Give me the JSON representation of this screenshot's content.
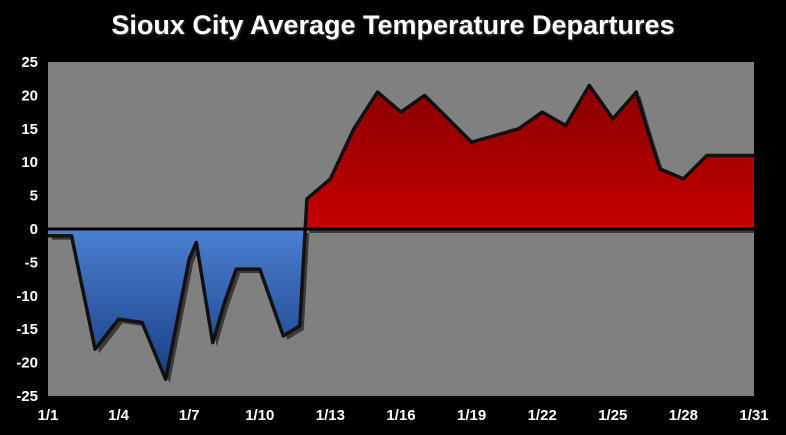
{
  "chart_data": {
    "type": "area",
    "title": "Sioux City Average Temperature Departures",
    "xlabel": "",
    "ylabel": "",
    "ylim": [
      -25,
      25
    ],
    "yticks": [
      25,
      20,
      15,
      10,
      5,
      0,
      -5,
      -10,
      -15,
      -20,
      -25
    ],
    "xticks": [
      "1/1",
      "1/4",
      "1/7",
      "1/10",
      "1/13",
      "1/16",
      "1/19",
      "1/22",
      "1/25",
      "1/28",
      "1/31"
    ],
    "xtick_days": [
      1,
      4,
      7,
      10,
      13,
      16,
      19,
      22,
      25,
      28,
      31
    ],
    "x": [
      1,
      1.5,
      2,
      3,
      4,
      5,
      6,
      7,
      7.3,
      8,
      8.5,
      9,
      10,
      11,
      11.7,
      12,
      13,
      14,
      15,
      16,
      17,
      18,
      19,
      20,
      21,
      22,
      23,
      24,
      25,
      26,
      26.5,
      27,
      28,
      29,
      30,
      31
    ],
    "values": [
      -1,
      -1,
      -1,
      -18,
      -13.5,
      -14,
      -22.5,
      -4.5,
      -2,
      -17,
      -11,
      -6,
      -6,
      -16,
      -14.5,
      4.5,
      7.5,
      15,
      20.5,
      17.5,
      20,
      16.5,
      13,
      14,
      15,
      17.5,
      15.5,
      21.5,
      16.5,
      20.5,
      14.5,
      9,
      7.5,
      11,
      11,
      11
    ],
    "grid": false,
    "legend": "none",
    "colors": {
      "background": "#000000",
      "plot_area": "#808080",
      "positive": "#e00000",
      "negative": "#4a7ecf",
      "outline": "#111111"
    }
  }
}
